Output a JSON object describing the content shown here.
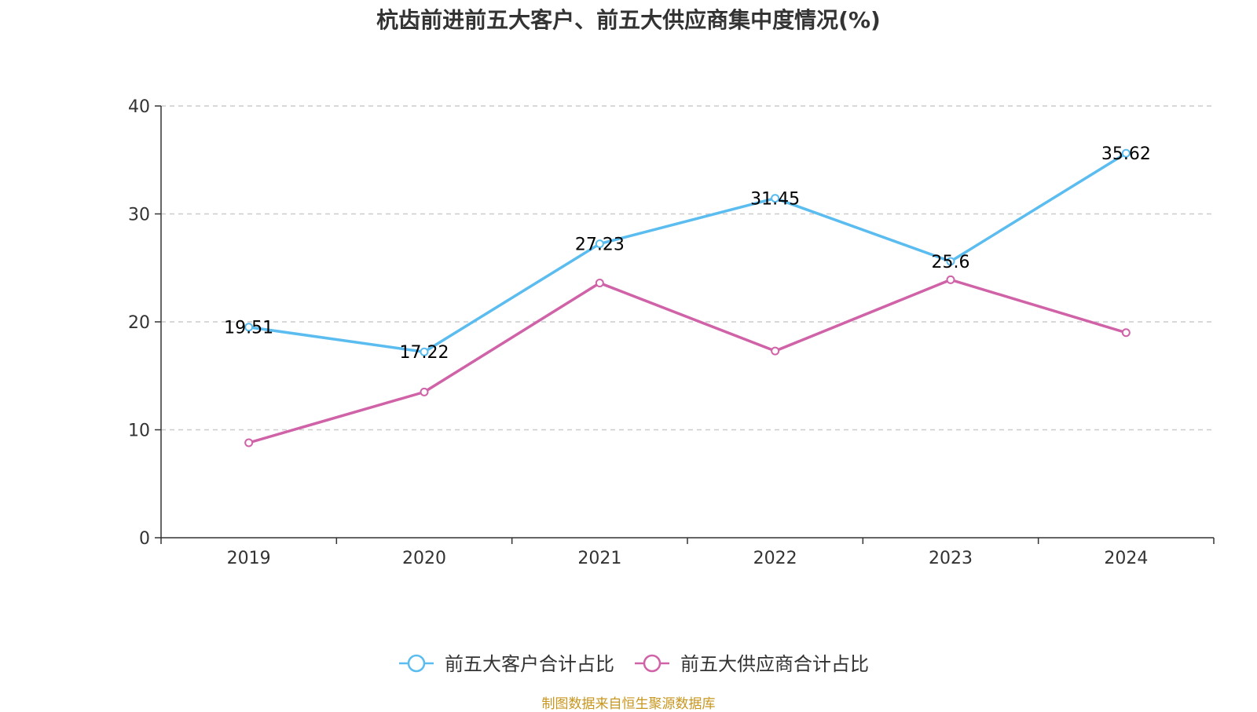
{
  "chart_data": {
    "type": "line",
    "title": "杭齿前进前五大客户、前五大供应商集中度情况(%)",
    "categories": [
      "2019",
      "2020",
      "2021",
      "2022",
      "2023",
      "2024"
    ],
    "ylim": [
      0,
      40
    ],
    "yticks": [
      0,
      10,
      20,
      30,
      40
    ],
    "grid": true,
    "legend_position": "bottom",
    "series": [
      {
        "name": "前五大客户合计占比",
        "color": "#5bbcf0",
        "values": [
          19.51,
          17.22,
          27.23,
          31.45,
          25.6,
          35.62
        ],
        "labels": [
          "19.51",
          "17.22",
          "27.23",
          "31.45",
          "25.6",
          "35.62"
        ],
        "show_labels": true
      },
      {
        "name": "前五大供应商合计占比",
        "color": "#d062a8",
        "values": [
          8.8,
          13.5,
          23.6,
          17.3,
          23.9,
          19.0
        ],
        "show_labels": false
      }
    ]
  },
  "source_text": "制图数据来自恒生聚源数据库",
  "source_color": "#c8961e"
}
